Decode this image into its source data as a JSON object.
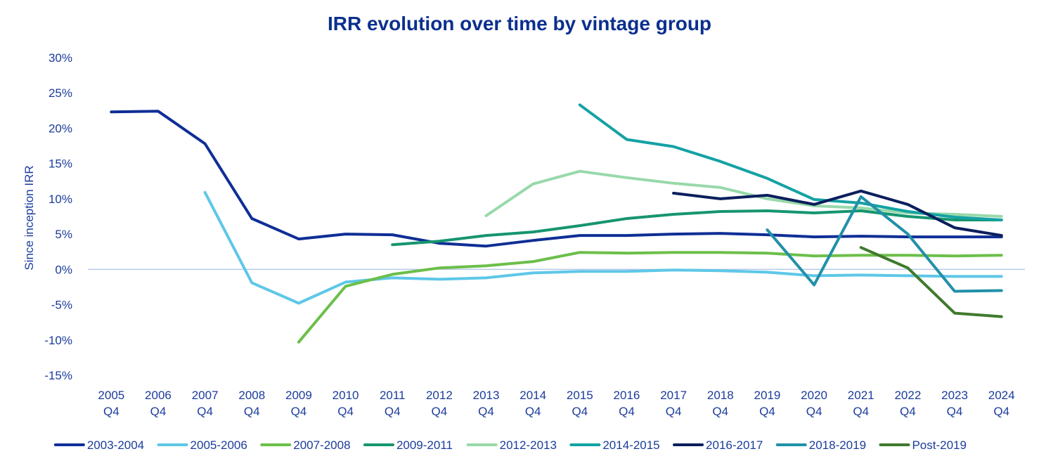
{
  "chart_data": {
    "type": "line",
    "title": "IRR evolution over time by vintage group",
    "ylabel": "Since inception IRR",
    "xlabel": "",
    "ylim": [
      -15,
      30
    ],
    "ytick_step": 5,
    "ytick_suffix": "%",
    "categories": [
      [
        "2005",
        "Q4"
      ],
      [
        "2006",
        "Q4"
      ],
      [
        "2007",
        "Q4"
      ],
      [
        "2008",
        "Q4"
      ],
      [
        "2009",
        "Q4"
      ],
      [
        "2010",
        "Q4"
      ],
      [
        "2011",
        "Q4"
      ],
      [
        "2012",
        "Q4"
      ],
      [
        "2013",
        "Q4"
      ],
      [
        "2014",
        "Q4"
      ],
      [
        "2015",
        "Q4"
      ],
      [
        "2016",
        "Q4"
      ],
      [
        "2017",
        "Q4"
      ],
      [
        "2018",
        "Q4"
      ],
      [
        "2019",
        "Q4"
      ],
      [
        "2020",
        "Q4"
      ],
      [
        "2021",
        "Q4"
      ],
      [
        "2022",
        "Q4"
      ],
      [
        "2023",
        "Q4"
      ],
      [
        "2024",
        "Q4"
      ]
    ],
    "zero_line_color": "#b4c7e7",
    "legend_position": "bottom",
    "series": [
      {
        "name": "2003-2004",
        "color": "#0f2e96",
        "values": [
          22.3,
          22.4,
          17.8,
          7.2,
          4.3,
          5.0,
          4.9,
          3.7,
          3.3,
          4.1,
          4.8,
          4.8,
          5.0,
          5.1,
          4.9,
          4.6,
          4.7,
          4.6,
          4.6,
          4.6
        ]
      },
      {
        "name": "2005-2006",
        "color": "#5ec7e8",
        "values": [
          null,
          null,
          10.9,
          -1.9,
          -4.8,
          -1.8,
          -1.2,
          -1.4,
          -1.2,
          -0.5,
          -0.3,
          -0.3,
          -0.1,
          -0.2,
          -0.4,
          -0.9,
          -0.8,
          -0.9,
          -1.0,
          -1.0
        ]
      },
      {
        "name": "2007-2008",
        "color": "#6cbf4a",
        "values": [
          null,
          null,
          null,
          null,
          -10.3,
          -2.4,
          -0.7,
          0.2,
          0.5,
          1.1,
          2.4,
          2.3,
          2.4,
          2.4,
          2.3,
          1.9,
          2.0,
          2.0,
          1.9,
          2.0
        ]
      },
      {
        "name": "2009-2011",
        "color": "#16956f",
        "values": [
          null,
          null,
          null,
          null,
          null,
          null,
          3.5,
          4.0,
          4.8,
          5.3,
          6.2,
          7.2,
          7.8,
          8.2,
          8.3,
          8.0,
          8.3,
          7.5,
          7.0,
          7.0
        ]
      },
      {
        "name": "2012-2013",
        "color": "#98d9aa",
        "values": [
          null,
          null,
          null,
          null,
          null,
          null,
          null,
          null,
          7.6,
          12.1,
          13.9,
          13.0,
          12.2,
          11.6,
          10.0,
          9.0,
          8.7,
          8.0,
          7.8,
          7.5
        ]
      },
      {
        "name": "2014-2015",
        "color": "#14a2a4",
        "values": [
          null,
          null,
          null,
          null,
          null,
          null,
          null,
          null,
          null,
          null,
          23.3,
          18.4,
          17.4,
          15.3,
          12.9,
          9.9,
          9.4,
          8.2,
          7.4,
          7.0
        ]
      },
      {
        "name": "2016-2017",
        "color": "#0b1f5c",
        "values": [
          null,
          null,
          null,
          null,
          null,
          null,
          null,
          null,
          null,
          null,
          null,
          null,
          10.8,
          10.0,
          10.5,
          9.2,
          11.1,
          9.2,
          5.9,
          4.8
        ]
      },
      {
        "name": "2018-2019",
        "color": "#2190a8",
        "values": [
          null,
          null,
          null,
          null,
          null,
          null,
          null,
          null,
          null,
          null,
          null,
          null,
          null,
          null,
          5.6,
          -2.2,
          10.3,
          5.0,
          -3.1,
          -3.0
        ]
      },
      {
        "name": "Post-2019",
        "color": "#3f7a2c",
        "values": [
          null,
          null,
          null,
          null,
          null,
          null,
          null,
          null,
          null,
          null,
          null,
          null,
          null,
          null,
          null,
          null,
          3.1,
          0.2,
          -6.2,
          -6.7
        ]
      }
    ]
  }
}
